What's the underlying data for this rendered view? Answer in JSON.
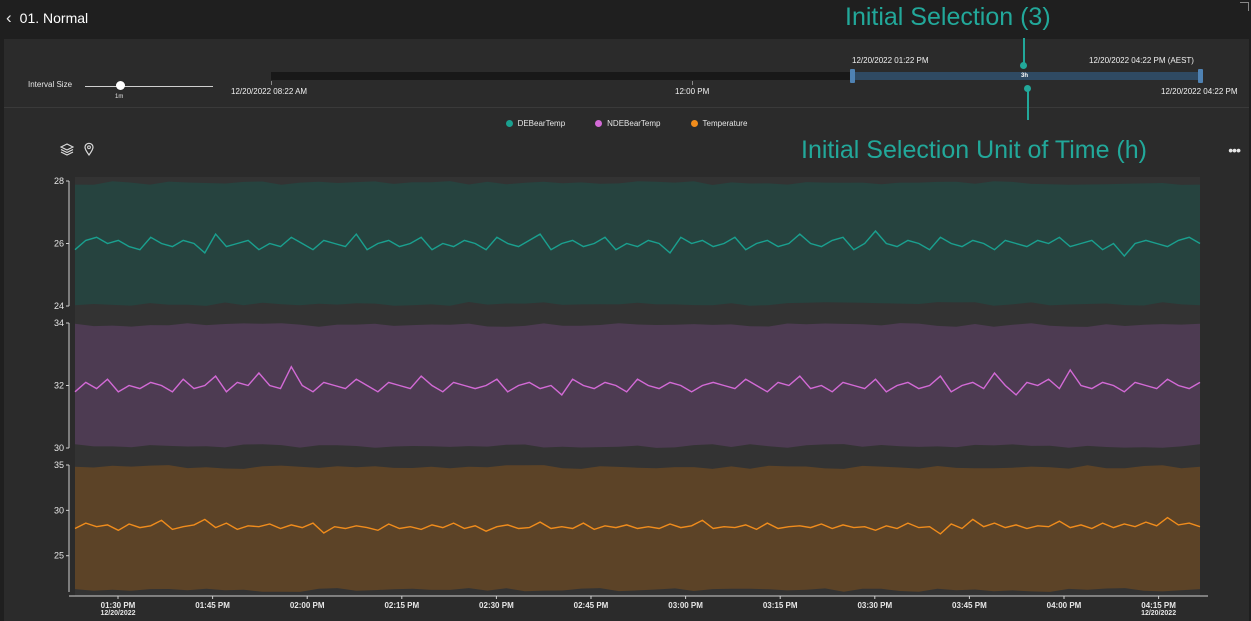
{
  "header": {
    "back_icon": "chevron-left-icon",
    "title": "01. Normal"
  },
  "range": {
    "interval_label": "Interval Size",
    "interval_value": "1m",
    "start": "12/20/2022 08:22 AM",
    "mid": "12:00 PM",
    "end": "12/20/2022 04:22 PM",
    "sel_start": "12/20/2022 01:22 PM",
    "sel_end": "12/20/2022 04:22 PM (AEST)",
    "sel_badge": "3h"
  },
  "legend": [
    {
      "name": "DEBearTemp",
      "color": "#1aa08f"
    },
    {
      "name": "NDEBearTemp",
      "color": "#d36ad6"
    },
    {
      "name": "Temperature",
      "color": "#f08c1c"
    }
  ],
  "toolbar": {
    "layers_icon": "layers-icon",
    "pin_icon": "map-pin-icon",
    "more_icon": "more-horizontal-icon"
  },
  "annotations": {
    "top": "Initial Selection (3)",
    "bottom": "Initial Selection Unit of Time (h)"
  },
  "chart_data": {
    "type": "line",
    "x_ticks": [
      {
        "label": "01:30 PM",
        "sub": "12/20/2022"
      },
      {
        "label": "01:45 PM"
      },
      {
        "label": "02:00 PM"
      },
      {
        "label": "02:15 PM"
      },
      {
        "label": "02:30 PM"
      },
      {
        "label": "02:45 PM"
      },
      {
        "label": "03:00 PM"
      },
      {
        "label": "03:15 PM"
      },
      {
        "label": "03:30 PM"
      },
      {
        "label": "03:45 PM"
      },
      {
        "label": "04:00 PM"
      },
      {
        "label": "04:15 PM",
        "sub": "12/20/2022"
      }
    ],
    "series": [
      {
        "name": "DEBearTemp",
        "color": "#1aa08f",
        "band_color": "#26433f",
        "ylim": [
          24,
          28
        ],
        "y_ticks": [
          "24",
          "26",
          "28"
        ],
        "band": [
          24,
          28
        ],
        "values": [
          25.8,
          26.1,
          26.2,
          26.0,
          26.1,
          25.9,
          25.8,
          26.2,
          26.0,
          25.9,
          26.1,
          26.0,
          25.7,
          26.3,
          25.9,
          26.0,
          26.1,
          25.8,
          26.0,
          25.9,
          26.2,
          26.0,
          25.8,
          26.1,
          26.0,
          25.9,
          26.3,
          25.8,
          26.0,
          26.1,
          25.9,
          26.0,
          26.2,
          25.8,
          26.0,
          25.9,
          26.1,
          26.0,
          25.8,
          26.2,
          26.0,
          25.9,
          26.1,
          26.3,
          25.8,
          26.0,
          26.1,
          25.9,
          26.0,
          26.2,
          25.8,
          26.0,
          25.9,
          26.1,
          26.0,
          25.7,
          26.2,
          26.0,
          26.1,
          25.9,
          26.0,
          26.2,
          25.8,
          26.0,
          26.1,
          25.9,
          26.0,
          26.3,
          26.0,
          25.9,
          26.1,
          26.2,
          25.8,
          26.0,
          26.4,
          26.0,
          25.9,
          26.1,
          26.0,
          25.8,
          26.2,
          26.0,
          25.9,
          26.1,
          26.0,
          25.8,
          26.1,
          26.0,
          25.9,
          26.1,
          26.0,
          26.2,
          25.9,
          26.0,
          26.1,
          25.8,
          26.0,
          25.6,
          26.0,
          26.1,
          26.0,
          25.9,
          26.1,
          26.2,
          26.0
        ]
      },
      {
        "name": "NDEBearTemp",
        "color": "#d36ad6",
        "band_color": "#4d3b52",
        "ylim": [
          30,
          34
        ],
        "y_ticks": [
          "30",
          "32",
          "34"
        ],
        "band": [
          30,
          34
        ],
        "values": [
          31.8,
          32.1,
          31.9,
          32.2,
          31.8,
          32.0,
          31.9,
          32.1,
          32.0,
          31.8,
          32.2,
          31.9,
          32.0,
          32.3,
          31.8,
          32.1,
          32.0,
          32.4,
          32.0,
          31.9,
          32.6,
          32.0,
          31.8,
          32.1,
          32.0,
          31.9,
          32.2,
          32.0,
          31.8,
          32.1,
          32.0,
          31.9,
          32.3,
          32.0,
          31.8,
          32.1,
          32.0,
          31.9,
          32.0,
          32.2,
          31.8,
          32.0,
          32.1,
          31.9,
          32.0,
          31.7,
          32.2,
          32.0,
          31.9,
          32.1,
          32.0,
          31.8,
          32.2,
          32.0,
          31.9,
          32.1,
          32.0,
          31.8,
          32.0,
          32.1,
          32.0,
          31.9,
          32.2,
          32.0,
          31.8,
          32.1,
          32.0,
          32.3,
          31.9,
          32.0,
          31.8,
          32.1,
          32.0,
          31.9,
          32.2,
          31.8,
          32.0,
          32.1,
          31.9,
          32.0,
          32.3,
          31.8,
          32.0,
          32.1,
          31.9,
          32.4,
          32.0,
          31.7,
          32.1,
          32.0,
          32.2,
          31.9,
          32.5,
          32.0,
          31.9,
          32.1,
          32.0,
          31.8,
          32.1,
          32.0,
          31.9,
          32.2,
          32.0,
          31.9,
          32.1
        ]
      },
      {
        "name": "Temperature",
        "color": "#f08c1c",
        "band_color": "#5c4327",
        "ylim": [
          21,
          35
        ],
        "y_ticks": [
          "25",
          "30",
          "35"
        ],
        "band": [
          21,
          35
        ],
        "values": [
          28.0,
          28.6,
          28.2,
          28.4,
          27.8,
          28.5,
          28.1,
          28.3,
          28.9,
          27.9,
          28.2,
          28.4,
          29.0,
          28.1,
          28.6,
          27.9,
          28.3,
          28.2,
          28.5,
          28.0,
          28.4,
          28.1,
          28.6,
          27.5,
          28.2,
          28.0,
          28.3,
          28.1,
          27.8,
          28.5,
          28.0,
          28.2,
          27.9,
          28.4,
          28.1,
          28.6,
          28.0,
          28.3,
          27.7,
          28.2,
          28.4,
          28.0,
          28.1,
          28.7,
          28.0,
          28.2,
          28.0,
          28.6,
          27.9,
          28.3,
          28.1,
          28.4,
          28.0,
          28.2,
          28.0,
          28.5,
          28.1,
          28.3,
          28.9,
          28.0,
          28.2,
          28.1,
          28.4,
          27.9,
          28.6,
          28.0,
          28.2,
          28.3,
          28.1,
          28.5,
          28.0,
          28.4,
          28.1,
          28.2,
          27.8,
          28.3,
          28.0,
          28.6,
          28.1,
          28.2,
          27.4,
          28.5,
          28.0,
          29.0,
          28.2,
          28.6,
          28.1,
          28.4,
          28.0,
          28.3,
          28.2,
          28.8,
          28.1,
          28.4,
          28.0,
          28.6,
          28.1,
          28.5,
          28.2,
          28.7,
          28.3,
          29.2,
          28.4,
          28.6,
          28.2
        ]
      }
    ]
  }
}
